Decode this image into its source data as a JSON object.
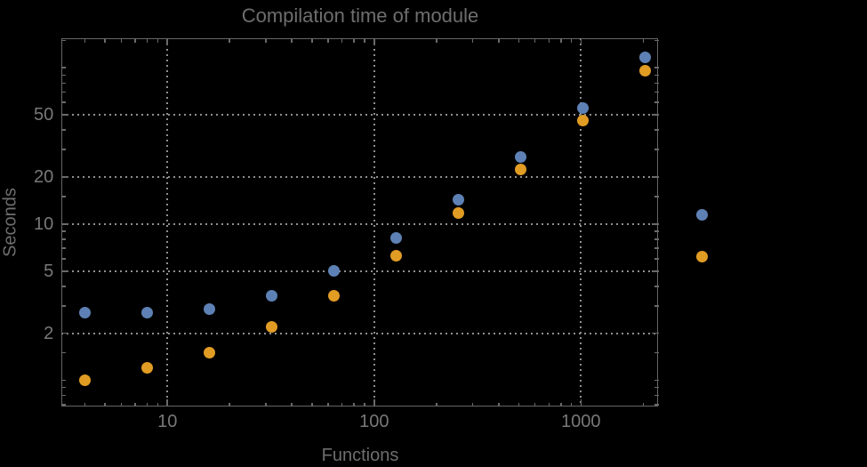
{
  "chart": {
    "title": "Compilation time of module",
    "xlabel": "Functions",
    "ylabel": "Seconds"
  },
  "colors": {
    "background": "#000000",
    "frame": "#666666",
    "gridlines": "#8f8f8f",
    "text": "#6e6e6e",
    "tick_label_text": "#787878",
    "series1_blue": "#5e81b5",
    "series2_orange": "#e19c24"
  },
  "chart_data": {
    "type": "scatter",
    "title": "Compilation time of module",
    "xlabel": "Functions",
    "ylabel": "Seconds",
    "x_scale": "log",
    "y_scale": "log",
    "xlim": [
      3.08,
      2376
    ],
    "ylim": [
      0.68,
      154
    ],
    "grid": "dotted gray lines at major ticks only",
    "x": [
      4,
      8,
      16,
      32,
      64,
      128,
      256,
      512,
      1024,
      2048
    ],
    "series": [
      {
        "name": "series-1-blue",
        "color": "#5e81b5",
        "values": [
          2.7,
          2.7,
          2.85,
          3.5,
          5.05,
          8.2,
          14.3,
          27,
          55,
          117
        ]
      },
      {
        "name": "series-2-orange",
        "color": "#e19c24",
        "values": [
          1.0,
          1.2,
          1.5,
          2.2,
          3.5,
          6.3,
          11.7,
          22.5,
          46,
          96
        ]
      }
    ],
    "x_major_ticks": [
      10,
      100,
      1000
    ],
    "x_tick_labels": [
      "10",
      "100",
      "1000"
    ],
    "x_minor_ticks": [
      4,
      5,
      6,
      7,
      8,
      9,
      20,
      30,
      40,
      50,
      60,
      70,
      80,
      90,
      200,
      300,
      400,
      500,
      600,
      700,
      800,
      900,
      2000
    ],
    "y_major_ticks": [
      2,
      5,
      10,
      20,
      50
    ],
    "y_tick_labels": [
      "2",
      "5",
      "10",
      "20",
      "50"
    ],
    "y_minor_ticks": [
      0.7,
      0.8,
      0.9,
      1,
      1.5,
      3,
      4,
      6,
      7,
      8,
      9,
      15,
      30,
      40,
      60,
      70,
      80,
      90,
      100,
      150
    ],
    "legend": {
      "position": "right of plot frame",
      "entries": [
        {
          "marker_color": "#5e81b5",
          "label": ""
        },
        {
          "marker_color": "#e19c24",
          "label": ""
        }
      ]
    }
  }
}
